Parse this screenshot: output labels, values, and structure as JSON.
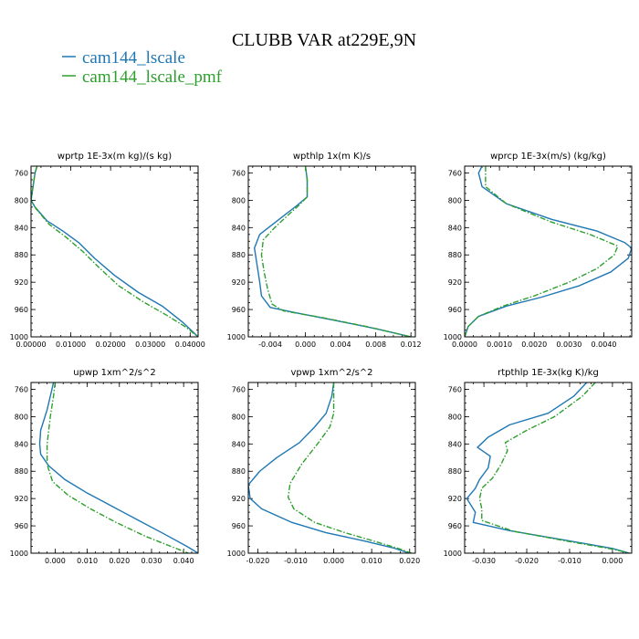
{
  "title": "CLUBB VAR at229E,9N",
  "legend": [
    {
      "label": "cam144_lscale",
      "color": "#1f77b4"
    },
    {
      "label": "cam144_lscale_pmf",
      "color": "#2ca02c"
    }
  ],
  "chart_data": [
    {
      "type": "line",
      "title": "wprtp   1E-3x(m kg)/(s kg)",
      "xlim": [
        0,
        0.042
      ],
      "ylim": [
        750,
        1000
      ],
      "y_reversed": true,
      "xticks": [
        0,
        0.01,
        0.02,
        0.03,
        0.04
      ],
      "xtick_labels": [
        "0.00000",
        "0.01000",
        "0.02000",
        "0.03000",
        "0.04000"
      ],
      "yticks": [
        760,
        800,
        840,
        880,
        920,
        960,
        1000
      ],
      "series": [
        {
          "name": "cam144_lscale",
          "style": "solid",
          "color": "#1f77b4",
          "points": [
            [
              0.0015,
              750
            ],
            [
              0.001,
              760
            ],
            [
              0.0005,
              780
            ],
            [
              0,
              800
            ],
            [
              0.001,
              810
            ],
            [
              0.004,
              830
            ],
            [
              0.008,
              845
            ],
            [
              0.012,
              862
            ],
            [
              0.016,
              885
            ],
            [
              0.021,
              910
            ],
            [
              0.027,
              935
            ],
            [
              0.033,
              955
            ],
            [
              0.038,
              978
            ],
            [
              0.042,
              1000
            ]
          ]
        },
        {
          "name": "cam144_lscale_pmf",
          "style": "dashdot",
          "color": "#2ca02c",
          "points": [
            [
              0.0015,
              750
            ],
            [
              0.001,
              760
            ],
            [
              0.0005,
              780
            ],
            [
              0,
              800
            ],
            [
              0.0012,
              812
            ],
            [
              0.0045,
              835
            ],
            [
              0.009,
              855
            ],
            [
              0.013,
              875
            ],
            [
              0.017,
              898
            ],
            [
              0.022,
              925
            ],
            [
              0.028,
              948
            ],
            [
              0.034,
              968
            ],
            [
              0.039,
              986
            ],
            [
              0.042,
              1000
            ]
          ]
        }
      ]
    },
    {
      "type": "line",
      "title": "wpthlp   1x(m K)/s",
      "xlim": [
        -0.0065,
        0.0125
      ],
      "ylim": [
        750,
        1000
      ],
      "y_reversed": true,
      "xticks": [
        -0.004,
        0,
        0.004,
        0.008,
        0.012
      ],
      "xtick_labels": [
        "-0.004",
        "0.000",
        "0.004",
        "0.008",
        "0.012"
      ],
      "yticks": [
        760,
        800,
        840,
        880,
        920,
        960,
        1000
      ],
      "series": [
        {
          "name": "cam144_lscale",
          "style": "solid",
          "color": "#1f77b4",
          "points": [
            [
              0,
              750
            ],
            [
              0.0002,
              770
            ],
            [
              0.0002,
              795
            ],
            [
              -0.001,
              808
            ],
            [
              -0.003,
              828
            ],
            [
              -0.0052,
              850
            ],
            [
              -0.0058,
              870
            ],
            [
              -0.0055,
              895
            ],
            [
              -0.0052,
              920
            ],
            [
              -0.005,
              940
            ],
            [
              -0.004,
              957
            ],
            [
              -0.001,
              965
            ],
            [
              0.003,
              975
            ],
            [
              0.008,
              988
            ],
            [
              0.012,
              1000
            ]
          ]
        },
        {
          "name": "cam144_lscale_pmf",
          "style": "dashdot",
          "color": "#2ca02c",
          "points": [
            [
              0,
              750
            ],
            [
              0.0002,
              770
            ],
            [
              0.0002,
              795
            ],
            [
              -0.0008,
              808
            ],
            [
              -0.002,
              822
            ],
            [
              -0.0035,
              840
            ],
            [
              -0.0048,
              858
            ],
            [
              -0.005,
              880
            ],
            [
              -0.0047,
              905
            ],
            [
              -0.0043,
              930
            ],
            [
              -0.0038,
              952
            ],
            [
              -0.0025,
              962
            ],
            [
              0.002,
              972
            ],
            [
              0.007,
              985
            ],
            [
              0.012,
              1000
            ]
          ]
        }
      ]
    },
    {
      "type": "line",
      "title": "wprcp   1E-3x(m/s) (kg/kg)",
      "xlim": [
        0,
        0.0048
      ],
      "ylim": [
        750,
        1000
      ],
      "y_reversed": true,
      "xticks": [
        0,
        0.001,
        0.002,
        0.003,
        0.004
      ],
      "xtick_labels": [
        "0.0000",
        "0.0010",
        "0.0020",
        "0.0030",
        "0.0040"
      ],
      "yticks": [
        760,
        800,
        840,
        880,
        920,
        960,
        1000
      ],
      "series": [
        {
          "name": "cam144_lscale",
          "style": "solid",
          "color": "#1f77b4",
          "points": [
            [
              0.0005,
              750
            ],
            [
              0.0004,
              760
            ],
            [
              0.0005,
              780
            ],
            [
              0.0012,
              805
            ],
            [
              0.0025,
              828
            ],
            [
              0.0038,
              845
            ],
            [
              0.0046,
              862
            ],
            [
              0.0048,
              870
            ],
            [
              0.0047,
              885
            ],
            [
              0.0042,
              905
            ],
            [
              0.0033,
              925
            ],
            [
              0.0022,
              942
            ],
            [
              0.0012,
              955
            ],
            [
              0.0004,
              970
            ],
            [
              0.0001,
              985
            ],
            [
              0,
              1000
            ]
          ]
        },
        {
          "name": "cam144_lscale_pmf",
          "style": "dashdot",
          "color": "#2ca02c",
          "points": [
            [
              0.0006,
              750
            ],
            [
              0.0006,
              760
            ],
            [
              0.0006,
              780
            ],
            [
              0.0012,
              805
            ],
            [
              0.0025,
              832
            ],
            [
              0.0036,
              850
            ],
            [
              0.0044,
              867
            ],
            [
              0.0043,
              880
            ],
            [
              0.0038,
              900
            ],
            [
              0.003,
              920
            ],
            [
              0.002,
              940
            ],
            [
              0.0011,
              955
            ],
            [
              0.0004,
              970
            ],
            [
              0.0001,
              985
            ],
            [
              0,
              1000
            ]
          ]
        }
      ]
    },
    {
      "type": "line",
      "title": "upwp   1xm^2/s^2",
      "xlim": [
        -0.0075,
        0.0445
      ],
      "ylim": [
        750,
        1000
      ],
      "y_reversed": true,
      "xticks": [
        0,
        0.01,
        0.02,
        0.03,
        0.04
      ],
      "xtick_labels": [
        "0.000",
        "0.010",
        "0.020",
        "0.030",
        "0.040"
      ],
      "yticks": [
        760,
        800,
        840,
        880,
        920,
        960,
        1000
      ],
      "series": [
        {
          "name": "cam144_lscale",
          "style": "solid",
          "color": "#1f77b4",
          "points": [
            [
              -0.0005,
              750
            ],
            [
              -0.001,
              760
            ],
            [
              -0.0025,
              790
            ],
            [
              -0.0045,
              820
            ],
            [
              -0.0048,
              840
            ],
            [
              -0.0045,
              855
            ],
            [
              -0.002,
              872
            ],
            [
              0.003,
              892
            ],
            [
              0.01,
              912
            ],
            [
              0.018,
              932
            ],
            [
              0.026,
              952
            ],
            [
              0.034,
              972
            ],
            [
              0.041,
              990
            ],
            [
              0.0445,
              1000
            ]
          ]
        },
        {
          "name": "cam144_lscale_pmf",
          "style": "dashdot",
          "color": "#2ca02c",
          "points": [
            [
              0,
              750
            ],
            [
              -0.0005,
              770
            ],
            [
              -0.0015,
              800
            ],
            [
              -0.0025,
              840
            ],
            [
              -0.0025,
              870
            ],
            [
              -0.0008,
              895
            ],
            [
              0.004,
              915
            ],
            [
              0.011,
              935
            ],
            [
              0.019,
              955
            ],
            [
              0.028,
              975
            ],
            [
              0.036,
              990
            ],
            [
              0.0415,
              1000
            ]
          ]
        }
      ]
    },
    {
      "type": "line",
      "title": "vpwp   1xm^2/s^2",
      "xlim": [
        -0.0225,
        0.0215
      ],
      "ylim": [
        750,
        1000
      ],
      "y_reversed": true,
      "xticks": [
        -0.02,
        -0.01,
        0,
        0.01,
        0.02
      ],
      "xtick_labels": [
        "-0.020",
        "-0.010",
        "0.000",
        "0.010",
        "0.020"
      ],
      "yticks": [
        760,
        800,
        840,
        880,
        920,
        960,
        1000
      ],
      "series": [
        {
          "name": "cam144_lscale",
          "style": "solid",
          "color": "#1f77b4",
          "points": [
            [
              0,
              750
            ],
            [
              -0.0005,
              770
            ],
            [
              -0.002,
              795
            ],
            [
              -0.005,
              815
            ],
            [
              -0.009,
              838
            ],
            [
              -0.015,
              860
            ],
            [
              -0.0195,
              880
            ],
            [
              -0.0225,
              900
            ],
            [
              -0.022,
              920
            ],
            [
              -0.019,
              935
            ],
            [
              -0.011,
              955
            ],
            [
              -0.002,
              970
            ],
            [
              0.008,
              982
            ],
            [
              0.0155,
              992
            ],
            [
              0.02,
              1000
            ]
          ]
        },
        {
          "name": "cam144_lscale_pmf",
          "style": "dashdot",
          "color": "#2ca02c",
          "points": [
            [
              0,
              750
            ],
            [
              0,
              770
            ],
            [
              0,
              795
            ],
            [
              -0.001,
              815
            ],
            [
              -0.004,
              838
            ],
            [
              -0.0085,
              870
            ],
            [
              -0.0115,
              898
            ],
            [
              -0.012,
              918
            ],
            [
              -0.0105,
              935
            ],
            [
              -0.005,
              955
            ],
            [
              0.003,
              970
            ],
            [
              0.011,
              983
            ],
            [
              0.017,
              993
            ],
            [
              0.0205,
              1000
            ]
          ]
        }
      ]
    },
    {
      "type": "line",
      "title": "rtpthlp   1E-3x(kg K)/kg",
      "xlim": [
        -0.0345,
        0.0045
      ],
      "ylim": [
        750,
        1000
      ],
      "y_reversed": true,
      "xticks": [
        -0.03,
        -0.02,
        -0.01,
        0
      ],
      "xtick_labels": [
        "-0.030",
        "-0.020",
        "-0.010",
        "0.000"
      ],
      "yticks": [
        760,
        800,
        840,
        880,
        920,
        960,
        1000
      ],
      "series": [
        {
          "name": "cam144_lscale",
          "style": "solid",
          "color": "#1f77b4",
          "points": [
            [
              -0.006,
              750
            ],
            [
              -0.009,
              770
            ],
            [
              -0.015,
              795
            ],
            [
              -0.024,
              812
            ],
            [
              -0.029,
              830
            ],
            [
              -0.0315,
              845
            ],
            [
              -0.0285,
              858
            ],
            [
              -0.029,
              875
            ],
            [
              -0.031,
              892
            ],
            [
              -0.032,
              905
            ],
            [
              -0.034,
              920
            ],
            [
              -0.032,
              940
            ],
            [
              -0.0325,
              955
            ],
            [
              -0.024,
              967
            ],
            [
              -0.01,
              982
            ],
            [
              0,
              993
            ],
            [
              0.004,
              1000
            ]
          ]
        },
        {
          "name": "cam144_lscale_pmf",
          "style": "dashdot",
          "color": "#2ca02c",
          "points": [
            [
              -0.004,
              750
            ],
            [
              -0.007,
              770
            ],
            [
              -0.0135,
              800
            ],
            [
              -0.02,
              820
            ],
            [
              -0.025,
              838
            ],
            [
              -0.0245,
              850
            ],
            [
              -0.026,
              870
            ],
            [
              -0.028,
              890
            ],
            [
              -0.0305,
              905
            ],
            [
              -0.031,
              920
            ],
            [
              -0.0305,
              935
            ],
            [
              -0.0305,
              952
            ],
            [
              -0.023,
              968
            ],
            [
              -0.01,
              983
            ],
            [
              0,
              994
            ],
            [
              0.004,
              1000
            ]
          ]
        }
      ]
    }
  ]
}
